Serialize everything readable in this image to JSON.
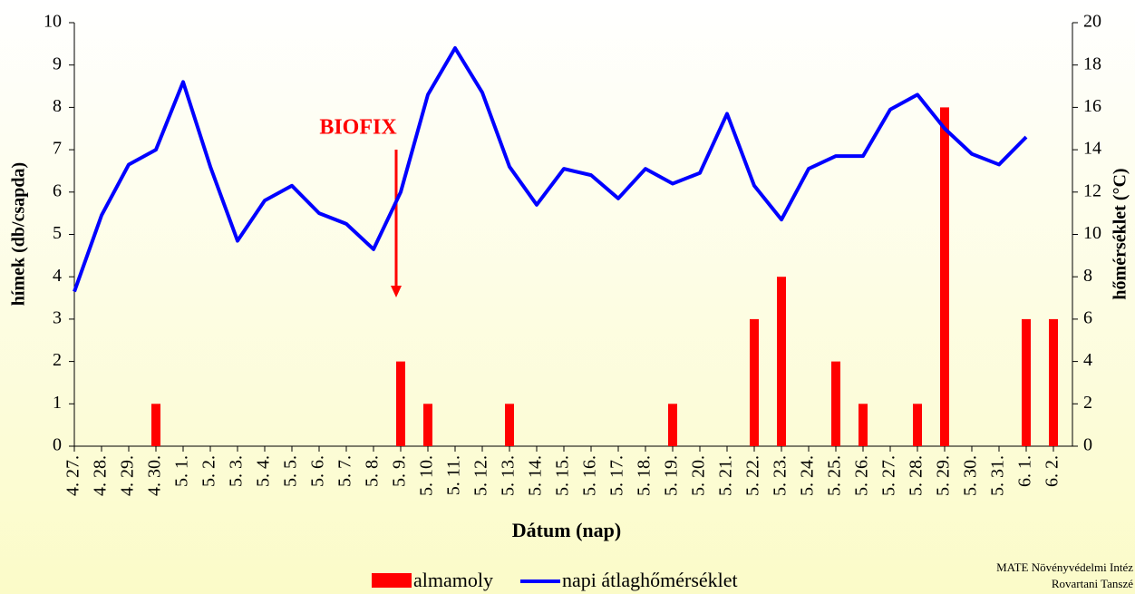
{
  "chart_data": {
    "type": "bar-line",
    "xlabel": "Dátum (nap)",
    "ylabel": "hímek (db/csapda)",
    "y2label": "hőmérséklet (°C)",
    "annotation": "BIOFIX",
    "source": [
      "MATE Növényvédelmi Intéz",
      "Rovartani Tanszé"
    ],
    "categories": [
      "4. 27.",
      "4. 28.",
      "4. 29.",
      "4. 30.",
      "5. 1.",
      "5. 2.",
      "5. 3.",
      "5. 4.",
      "5. 5.",
      "5. 6.",
      "5. 7.",
      "5. 8.",
      "5. 9.",
      "5. 10.",
      "5. 11.",
      "5. 12.",
      "5. 13.",
      "5. 14.",
      "5. 15.",
      "5. 16.",
      "5. 17.",
      "5. 18.",
      "5. 19.",
      "5. 20.",
      "5. 21.",
      "5. 22.",
      "5. 23.",
      "5. 24.",
      "5. 25.",
      "5. 26.",
      "5. 27.",
      "5. 28.",
      "5. 29.",
      "5. 30.",
      "5. 31.",
      "6. 1.",
      "6. 2."
    ],
    "series": [
      {
        "name": "almamoly",
        "type": "bar",
        "color": "#ff0000",
        "values": [
          0,
          0,
          0,
          1,
          0,
          0,
          0,
          0,
          0,
          0,
          0,
          0,
          2,
          1,
          0,
          0,
          1,
          0,
          0,
          0,
          0,
          0,
          1,
          0,
          0,
          3,
          4,
          0,
          2,
          1,
          0,
          1,
          8,
          0,
          0,
          3,
          3
        ]
      },
      {
        "name": "napi átlaghőmérséklet",
        "type": "line",
        "color": "#0000ff",
        "axis": "y2",
        "values": [
          7.3,
          10.9,
          13.3,
          14.0,
          17.2,
          13.2,
          9.7,
          11.6,
          12.3,
          11.0,
          10.5,
          9.3,
          12.0,
          16.6,
          18.8,
          16.7,
          13.2,
          11.4,
          13.1,
          12.8,
          11.7,
          13.1,
          12.4,
          12.9,
          15.7,
          12.3,
          10.7,
          13.1,
          13.7,
          13.7,
          15.9,
          16.6,
          15.0,
          13.8,
          13.3,
          14.6,
          null
        ]
      }
    ],
    "ylim": [
      0,
      10
    ],
    "yticks": [
      0,
      1,
      2,
      3,
      4,
      5,
      6,
      7,
      8,
      9,
      10
    ],
    "y2lim": [
      0,
      20
    ],
    "y2ticks": [
      0,
      2,
      4,
      6,
      8,
      10,
      12,
      14,
      16,
      18,
      20
    ],
    "grid": false
  }
}
